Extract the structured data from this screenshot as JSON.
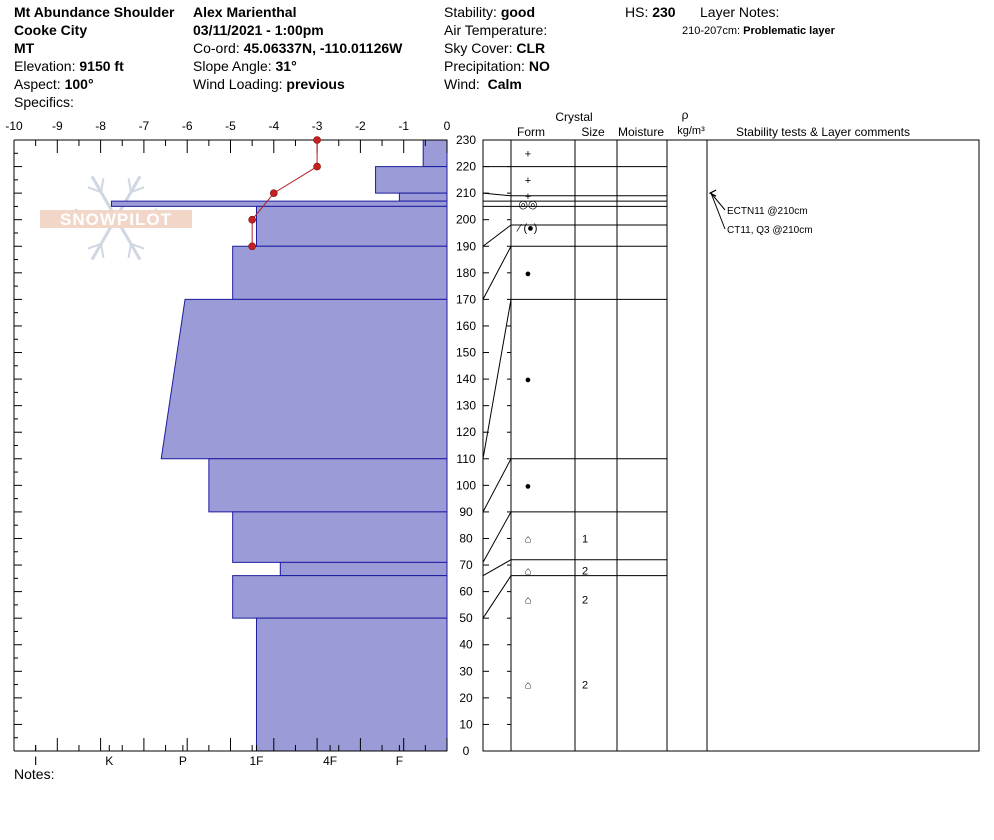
{
  "header": {
    "location": "Mt Abundance Shoulder",
    "area": "Cooke City",
    "state": "MT",
    "elevation_label": "Elevation:",
    "elevation_value": "9150 ft",
    "aspect_label": "Aspect:",
    "aspect_value": "100°",
    "specifics_label": "Specifics:",
    "observer": "Alex Marienthal",
    "datetime": "03/11/2021 - 1:00pm",
    "coord_label": "Co-ord:",
    "coord_value": "45.06337N, -110.01126W",
    "slope_label": "Slope Angle:",
    "slope_value": "31°",
    "wind_loading_label": "Wind Loading:",
    "wind_loading_value": "previous",
    "stability_label": "Stability:",
    "stability_value": "good",
    "air_temp_label": "Air Temperature:",
    "sky_label": "Sky Cover:",
    "sky_value": "CLR",
    "precip_label": "Precipitation:",
    "precip_value": "NO",
    "wind_label": "Wind:",
    "wind_value": "Calm",
    "hs_label": "HS:",
    "hs_value": "230",
    "layer_notes_label": "Layer Notes:",
    "layer_note_range": "210-207cm:",
    "layer_note_text": "Problematic layer"
  },
  "logo_text": "SNOWPILOT",
  "notes_label": "Notes:",
  "columns": {
    "crystal": "Crystal",
    "form": "Form",
    "size": "Size",
    "moisture": "Moisture",
    "rho": "ρ",
    "density_unit": "kg/m³",
    "stability_comments": "Stability tests & Layer comments"
  },
  "chart_data": {
    "type": "snow-profile",
    "temperature_axis": {
      "ticks": [
        "-10",
        "-9",
        "-8",
        "-7",
        "-6",
        "-5",
        "-4",
        "-3",
        "-2",
        "-1",
        "0"
      ],
      "range": [
        -10,
        0
      ]
    },
    "hardness_axis": {
      "labels": [
        "I",
        "K",
        "P",
        "1F",
        "4F",
        "F"
      ]
    },
    "height_axis": {
      "range": [
        0,
        230
      ],
      "step": 10
    },
    "hardness_layers": [
      {
        "top": 230,
        "bottom": 220,
        "top_h": -0.55,
        "bot_h": -0.55
      },
      {
        "top": 220,
        "bottom": 210,
        "top_h": -1.65,
        "bot_h": -1.65
      },
      {
        "top": 210,
        "bottom": 207,
        "top_h": -1.1,
        "bot_h": -1.1
      },
      {
        "top": 207,
        "bottom": 205,
        "top_h": -7.75,
        "bot_h": -7.75
      },
      {
        "top": 205,
        "bottom": 190,
        "top_h": -4.4,
        "bot_h": -4.4
      },
      {
        "top": 190,
        "bottom": 170,
        "top_h": -4.95,
        "bot_h": -4.95
      },
      {
        "top": 170,
        "bottom": 110,
        "top_h": -6.05,
        "bot_h": -6.6
      },
      {
        "top": 110,
        "bottom": 90,
        "top_h": -5.5,
        "bot_h": -5.5
      },
      {
        "top": 90,
        "bottom": 71,
        "top_h": -4.95,
        "bot_h": -4.95
      },
      {
        "top": 71,
        "bottom": 66,
        "top_h": -3.85,
        "bot_h": -3.85
      },
      {
        "top": 66,
        "bottom": 50,
        "top_h": -4.95,
        "bot_h": -4.95
      },
      {
        "top": 50,
        "bottom": 0,
        "top_h": -4.4,
        "bot_h": -4.4
      }
    ],
    "temperature_profile": [
      {
        "height": 230,
        "temp": -3.0
      },
      {
        "height": 220,
        "temp": -3.0
      },
      {
        "height": 210,
        "temp": -4.0
      },
      {
        "height": 200,
        "temp": -4.5
      },
      {
        "height": 190,
        "temp": -4.5
      }
    ],
    "layer_boundaries": [
      230,
      220,
      210,
      207,
      205,
      190,
      170,
      110,
      90,
      71,
      66,
      50,
      0
    ],
    "layer_labels": [
      {
        "center": 225,
        "form": "+",
        "size": ""
      },
      {
        "center": 215,
        "form": "+",
        "size": ""
      },
      {
        "center": 209,
        "form": "+",
        "size": ""
      },
      {
        "center": 206,
        "form": "◎◎",
        "size": ""
      },
      {
        "center": 197,
        "form": "⁄ (●)",
        "size": ""
      },
      {
        "center": 180,
        "form": "●",
        "size": ""
      },
      {
        "center": 140,
        "form": "●",
        "size": ""
      },
      {
        "center": 100,
        "form": "●",
        "size": ""
      },
      {
        "center": 80,
        "form": "⌂",
        "size": "1"
      },
      {
        "center": 68,
        "form": "⌂",
        "size": "2"
      },
      {
        "center": 57,
        "form": "⌂",
        "size": "2"
      },
      {
        "center": 25,
        "form": "⌂",
        "size": "2"
      }
    ],
    "stability_tests": [
      {
        "height": 210,
        "text": "ECTN11 @210cm"
      },
      {
        "height": 210,
        "text": "CT11, Q3 @210cm"
      }
    ]
  }
}
